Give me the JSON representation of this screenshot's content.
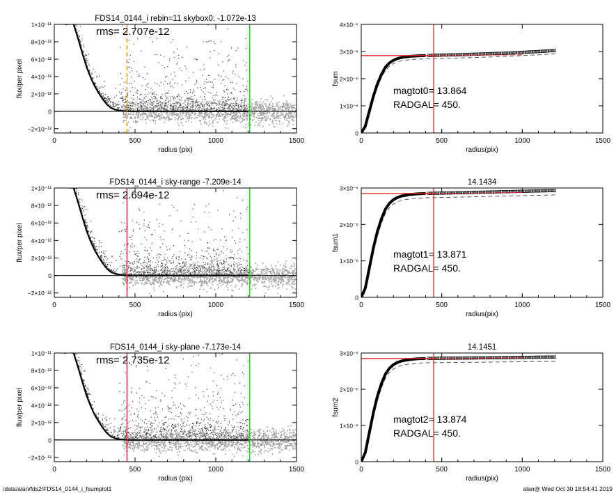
{
  "footer": {
    "left": "/data/alan/fds2/FDS14_0144_i_fsumplot1",
    "right": "alan@  Wed Oct 30 18:54:41 2019"
  },
  "colors": {
    "axis": "#000000",
    "profile_points": "#333333",
    "sky_points": "#9a9a9a",
    "mean_profile": "#000000",
    "red_marker": "#e8262b",
    "green_marker": "#1dcc1d",
    "orange_marker": "#f08a12",
    "dashed_curve": "#555555",
    "growth_points": "#000000"
  },
  "chart_data": [
    {
      "id": "profile-1",
      "type": "scatter",
      "title": "FDS14_0144_i rebin=11    skybox0: -1.072e-13",
      "annotation": "rms= 2.707e-12",
      "xlabel": "radius (pix)",
      "ylabel": "flux/per pixel",
      "xlim": [
        0,
        1500
      ],
      "ylim": [
        -2.5e-12,
        1e-11
      ],
      "xticks": [
        {
          "v": 0,
          "label": "0"
        },
        {
          "v": 500,
          "label": "500"
        },
        {
          "v": 1000,
          "label": "1000"
        },
        {
          "v": 1500,
          "label": "1500"
        }
      ],
      "yticks": [
        {
          "v": -2e-12,
          "label": "−2×10⁻¹²"
        },
        {
          "v": 0,
          "label": "0"
        },
        {
          "v": 2e-12,
          "label": "2×10⁻¹²"
        },
        {
          "v": 4e-12,
          "label": "4×10⁻¹²"
        },
        {
          "v": 6e-12,
          "label": "6×10⁻¹²"
        },
        {
          "v": 8e-12,
          "label": "8×10⁻¹²"
        },
        {
          "v": 1e-11,
          "label": "1×10⁻¹¹"
        }
      ],
      "profile": {
        "x": [
          120,
          150,
          175,
          200,
          225,
          250,
          275,
          300,
          325,
          350,
          375,
          400,
          450,
          500,
          1200
        ],
        "y": [
          1e-11,
          8.2e-12,
          6.6e-12,
          5.1e-12,
          3.9e-12,
          2.9e-12,
          2.1e-12,
          1.4e-12,
          8e-13,
          4e-13,
          2e-13,
          1e-13,
          0,
          0,
          0
        ]
      },
      "sky_rms": 2.707e-12,
      "vlines": [
        {
          "x": 450,
          "color": "orange_marker",
          "style": "dashed"
        },
        {
          "x": 1210,
          "color": "green_marker",
          "style": "solid"
        }
      ],
      "hline": 0
    },
    {
      "id": "growth-1",
      "type": "scatter",
      "title": "",
      "ylabel": "fsum",
      "xlabel": "radius(pix)",
      "xlim": [
        0,
        1500
      ],
      "ylim": [
        0,
        4e-06
      ],
      "xticks": [
        {
          "v": 0,
          "label": "0"
        },
        {
          "v": 500,
          "label": "500"
        },
        {
          "v": 1000,
          "label": "1000"
        },
        {
          "v": 1500,
          "label": "1500"
        }
      ],
      "yticks": [
        {
          "v": 0,
          "label": "0"
        },
        {
          "v": 1e-06,
          "label": "1×10⁻⁶"
        },
        {
          "v": 2e-06,
          "label": "2×10⁻⁶"
        },
        {
          "v": 3e-06,
          "label": "3×10⁻⁶"
        },
        {
          "v": 4e-06,
          "label": "4×10⁻⁶"
        }
      ],
      "curve": {
        "x": [
          0,
          25,
          50,
          75,
          100,
          125,
          150,
          175,
          200,
          225,
          250,
          275,
          300,
          325,
          350,
          375,
          400,
          450,
          500,
          600,
          700,
          800,
          900,
          1000,
          1100,
          1210
        ],
        "y": [
          0,
          2.5e-07,
          8e-07,
          1.35e-06,
          1.8e-06,
          2.15e-06,
          2.42e-06,
          2.58e-06,
          2.68e-06,
          2.74e-06,
          2.78e-06,
          2.8e-06,
          2.82e-06,
          2.83e-06,
          2.84e-06,
          2.845e-06,
          2.85e-06,
          2.86e-06,
          2.87e-06,
          2.88e-06,
          2.9e-06,
          2.92e-06,
          2.94e-06,
          2.97e-06,
          3e-06,
          3.04e-06
        ]
      },
      "dashed_offset": -1.2e-07,
      "red_curve": {
        "x": [
          400,
          1000
        ],
        "y": [
          2.84e-06,
          2.88e-06
        ]
      },
      "hline": {
        "y": 2.85e-06,
        "x_to": 450
      },
      "vline": 450,
      "annotations": [
        "magtot0=  13.864",
        "RADGAL=    450."
      ]
    },
    {
      "id": "profile-2",
      "type": "scatter",
      "title": "FDS14_0144_i sky-range -7.209e-14",
      "annotation": "rms= 2.694e-12",
      "xlabel": "radius (pix)",
      "ylabel": "flux/per pixel",
      "xlim": [
        0,
        1500
      ],
      "ylim": [
        -2.5e-12,
        1e-11
      ],
      "xticks": [
        {
          "v": 0,
          "label": "0"
        },
        {
          "v": 500,
          "label": "500"
        },
        {
          "v": 1000,
          "label": "1000"
        },
        {
          "v": 1500,
          "label": "1500"
        }
      ],
      "yticks": [
        {
          "v": -2e-12,
          "label": "−2×10⁻¹²"
        },
        {
          "v": 0,
          "label": "0"
        },
        {
          "v": 2e-12,
          "label": "2×10⁻¹²"
        },
        {
          "v": 4e-12,
          "label": "4×10⁻¹²"
        },
        {
          "v": 6e-12,
          "label": "6×10⁻¹²"
        },
        {
          "v": 8e-12,
          "label": "8×10⁻¹²"
        },
        {
          "v": 1e-11,
          "label": "1×10⁻¹¹"
        }
      ],
      "profile": {
        "x": [
          120,
          150,
          175,
          200,
          225,
          250,
          275,
          300,
          325,
          350,
          375,
          400,
          450,
          500,
          1200
        ],
        "y": [
          1e-11,
          8.2e-12,
          6.6e-12,
          5.1e-12,
          3.9e-12,
          2.9e-12,
          2.1e-12,
          1.4e-12,
          8e-13,
          4e-13,
          2e-13,
          1e-13,
          0,
          0,
          0
        ]
      },
      "sky_rms": 2.694e-12,
      "vlines": [
        {
          "x": 450,
          "color": "red_marker",
          "style": "solid"
        },
        {
          "x": 1210,
          "color": "green_marker",
          "style": "solid"
        }
      ],
      "hline": 0
    },
    {
      "id": "growth-2",
      "type": "scatter",
      "title": "14.1434",
      "ylabel": "fsum1",
      "xlabel": "radius(pix)",
      "xlim": [
        0,
        1500
      ],
      "ylim": [
        0,
        3e-06
      ],
      "xticks": [
        {
          "v": 0,
          "label": "0"
        },
        {
          "v": 500,
          "label": "500"
        },
        {
          "v": 1000,
          "label": "1000"
        },
        {
          "v": 1500,
          "label": "1500"
        }
      ],
      "yticks": [
        {
          "v": 0,
          "label": "0"
        },
        {
          "v": 1e-06,
          "label": "1×10⁻⁶"
        },
        {
          "v": 2e-06,
          "label": "2×10⁻⁶"
        },
        {
          "v": 3e-06,
          "label": "3×10⁻⁶"
        }
      ],
      "curve": {
        "x": [
          0,
          25,
          50,
          75,
          100,
          125,
          150,
          175,
          200,
          225,
          250,
          275,
          300,
          325,
          350,
          375,
          400,
          450,
          500,
          600,
          700,
          800,
          900,
          1000,
          1100,
          1210
        ],
        "y": [
          0,
          2.5e-07,
          8e-07,
          1.35e-06,
          1.8e-06,
          2.15e-06,
          2.42e-06,
          2.58e-06,
          2.68e-06,
          2.74e-06,
          2.78e-06,
          2.8e-06,
          2.82e-06,
          2.83e-06,
          2.84e-06,
          2.845e-06,
          2.85e-06,
          2.855e-06,
          2.86e-06,
          2.87e-06,
          2.88e-06,
          2.89e-06,
          2.9e-06,
          2.91e-06,
          2.92e-06,
          2.93e-06
        ]
      },
      "dashed_offset": -1.2e-07,
      "red_curve": {
        "x": [
          400,
          1000
        ],
        "y": [
          2.84e-06,
          2.88e-06
        ]
      },
      "hline": {
        "y": 2.85e-06,
        "x_to": 450
      },
      "vline": 450,
      "annotations": [
        "magtot1=  13.871",
        "RADGAL=    450."
      ]
    },
    {
      "id": "profile-3",
      "type": "scatter",
      "title": "FDS14_0144_i sky-plane -7.173e-14",
      "annotation": "rms= 2.735e-12",
      "xlabel": "radius (pix)",
      "ylabel": "flux/per pixel",
      "xlim": [
        0,
        1500
      ],
      "ylim": [
        -2.5e-12,
        1e-11
      ],
      "xticks": [
        {
          "v": 0,
          "label": "0"
        },
        {
          "v": 500,
          "label": "500"
        },
        {
          "v": 1000,
          "label": "1000"
        },
        {
          "v": 1500,
          "label": "1500"
        }
      ],
      "yticks": [
        {
          "v": -2e-12,
          "label": "−2×10⁻¹²"
        },
        {
          "v": 0,
          "label": "0"
        },
        {
          "v": 2e-12,
          "label": "2×10⁻¹²"
        },
        {
          "v": 4e-12,
          "label": "4×10⁻¹²"
        },
        {
          "v": 6e-12,
          "label": "6×10⁻¹²"
        },
        {
          "v": 8e-12,
          "label": "8×10⁻¹²"
        },
        {
          "v": 1e-11,
          "label": "1×10⁻¹¹"
        }
      ],
      "profile": {
        "x": [
          120,
          150,
          175,
          200,
          225,
          250,
          275,
          300,
          325,
          350,
          375,
          400,
          450,
          500,
          1200
        ],
        "y": [
          1e-11,
          8.2e-12,
          6.6e-12,
          5.1e-12,
          3.9e-12,
          2.9e-12,
          2.1e-12,
          1.4e-12,
          8e-13,
          4e-13,
          2e-13,
          1e-13,
          0,
          0,
          0
        ]
      },
      "sky_rms": 2.735e-12,
      "vlines": [
        {
          "x": 450,
          "color": "red_marker",
          "style": "solid"
        },
        {
          "x": 1210,
          "color": "green_marker",
          "style": "solid"
        }
      ],
      "hline": 0
    },
    {
      "id": "growth-3",
      "type": "scatter",
      "title": "14.1451",
      "ylabel": "fsum2",
      "xlabel": "radius(pix)",
      "xlim": [
        0,
        1500
      ],
      "ylim": [
        0,
        3e-06
      ],
      "xticks": [
        {
          "v": 0,
          "label": "0"
        },
        {
          "v": 500,
          "label": "500"
        },
        {
          "v": 1000,
          "label": "1000"
        },
        {
          "v": 1500,
          "label": "1500"
        }
      ],
      "yticks": [
        {
          "v": 0,
          "label": "0"
        },
        {
          "v": 1e-06,
          "label": "1×10⁻⁶"
        },
        {
          "v": 2e-06,
          "label": "2×10⁻⁶"
        },
        {
          "v": 3e-06,
          "label": "3×10⁻⁶"
        }
      ],
      "curve": {
        "x": [
          0,
          25,
          50,
          75,
          100,
          125,
          150,
          175,
          200,
          225,
          250,
          275,
          300,
          325,
          350,
          375,
          400,
          450,
          500,
          600,
          700,
          800,
          900,
          1000,
          1100,
          1210
        ],
        "y": [
          0,
          2.5e-07,
          8e-07,
          1.35e-06,
          1.8e-06,
          2.15e-06,
          2.42e-06,
          2.58e-06,
          2.68e-06,
          2.74e-06,
          2.78e-06,
          2.8e-06,
          2.82e-06,
          2.83e-06,
          2.84e-06,
          2.845e-06,
          2.85e-06,
          2.853e-06,
          2.856e-06,
          2.86e-06,
          2.865e-06,
          2.87e-06,
          2.875e-06,
          2.88e-06,
          2.885e-06,
          2.89e-06
        ]
      },
      "dashed_offset": -1.2e-07,
      "red_curve": {
        "x": [
          400,
          1000
        ],
        "y": [
          2.84e-06,
          2.87e-06
        ]
      },
      "hline": {
        "y": 2.85e-06,
        "x_to": 450
      },
      "vline": 450,
      "annotations": [
        "magtot2=  13.874",
        "RADGAL=    450."
      ]
    }
  ]
}
